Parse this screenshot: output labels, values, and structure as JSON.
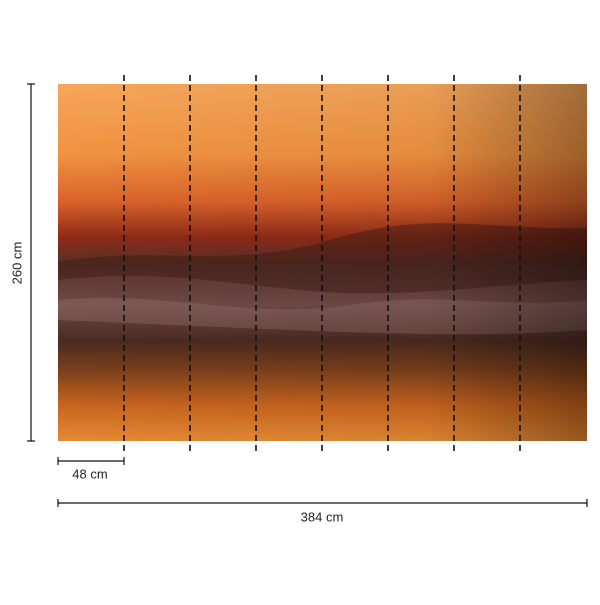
{
  "dimensions": {
    "height": "260 cm",
    "panel_width": "48 cm",
    "total_width": "384 cm"
  }
}
